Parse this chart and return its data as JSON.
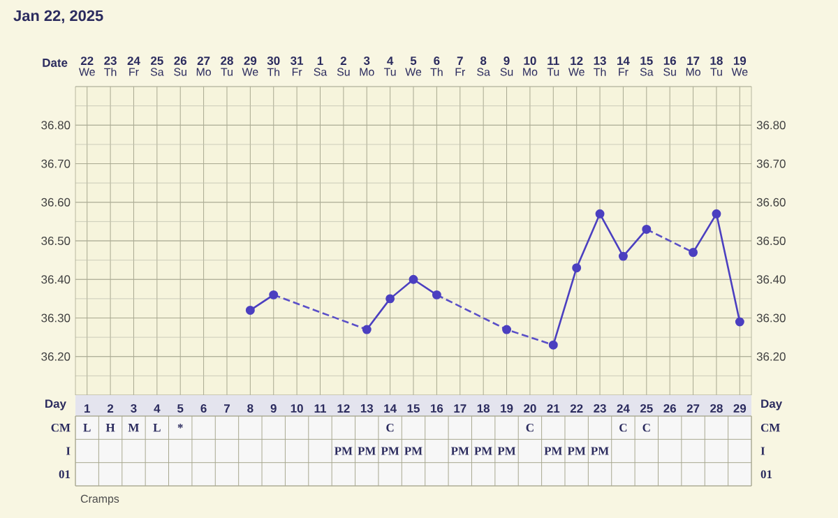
{
  "chart_data": [
    {
      "type": "line",
      "title": "Jan 22, 2025",
      "xlabel": "Date",
      "xlim": [
        "2025-01-21T12:00",
        "2025-02-19T12:00"
      ],
      "xticks": [
        {
          "value": "2025-01-22",
          "label": "22"
        },
        {
          "value": "2025-01-23",
          "label": "23"
        },
        {
          "value": "2025-01-24",
          "label": "24"
        },
        {
          "value": "2025-01-25",
          "label": "25"
        },
        {
          "value": "2025-01-26",
          "label": "26"
        },
        {
          "value": "2025-01-27",
          "label": "27"
        },
        {
          "value": "2025-01-28",
          "label": "28"
        },
        {
          "value": "2025-01-29",
          "label": "29"
        },
        {
          "value": "2025-01-30",
          "label": "30"
        },
        {
          "value": "2025-01-31",
          "label": "31"
        },
        {
          "value": "2025-02-01",
          "label": "1"
        },
        {
          "value": "2025-02-02",
          "label": "2"
        },
        {
          "value": "2025-02-03",
          "label": "3"
        },
        {
          "value": "2025-02-04",
          "label": "4"
        },
        {
          "value": "2025-02-05",
          "label": "5"
        },
        {
          "value": "2025-02-06",
          "label": "6"
        },
        {
          "value": "2025-02-07",
          "label": "7"
        },
        {
          "value": "2025-02-08",
          "label": "8"
        },
        {
          "value": "2025-02-09",
          "label": "9"
        },
        {
          "value": "2025-02-10",
          "label": "10"
        },
        {
          "value": "2025-02-11",
          "label": "11"
        },
        {
          "value": "2025-02-12",
          "label": "12"
        },
        {
          "value": "2025-02-13",
          "label": "13"
        },
        {
          "value": "2025-02-14",
          "label": "14"
        },
        {
          "value": "2025-02-15",
          "label": "15"
        },
        {
          "value": "2025-02-16",
          "label": "16"
        },
        {
          "value": "2025-02-17",
          "label": "17"
        },
        {
          "value": "2025-02-18",
          "label": "18"
        },
        {
          "value": "2025-02-19",
          "label": "19"
        }
      ],
      "annotations": [
        "We",
        "Th",
        "Fr",
        "Sa",
        "Su",
        "Mo",
        "Tu",
        "We",
        "Th",
        "Fr",
        "Sa",
        "Su",
        "Mo",
        "Tu",
        "We",
        "Th",
        "Fr",
        "Sa",
        "Su",
        "Mo",
        "Tu",
        "We",
        "Th",
        "Fr",
        "Sa",
        "Su",
        "Mo",
        "Tu",
        "We"
      ],
      "series": [
        {
          "color": "#4b3fc0",
          "line_style": "solid",
          "marker": "circle",
          "x": [
            "2025-01-29",
            "2025-01-30",
            "2025-01-31",
            "2025-02-03",
            "2025-02-04",
            "2025-02-05",
            "2025-02-06",
            "2025-02-07",
            "2025-02-09",
            "2025-02-10",
            "2025-02-11",
            "2025-02-12",
            "2025-02-13",
            "2025-02-14",
            "2025-02-15",
            "2025-02-16",
            "2025-02-17",
            "2025-02-18",
            "2025-02-19"
          ],
          "values": [
            36.32,
            36.36,
            null,
            36.27,
            36.35,
            36.4,
            36.36,
            null,
            36.27,
            null,
            36.23,
            36.43,
            36.57,
            36.46,
            36.53,
            null,
            36.47,
            36.57,
            36.29
          ]
        },
        {
          "color": "#5a4fc8",
          "line_style": "dashed",
          "marker": "none",
          "x": [
            "2025-01-30",
            "2025-02-03"
          ],
          "values": [
            36.36,
            36.27
          ]
        },
        {
          "color": "#5a4fc7",
          "line_style": "dashed",
          "marker": "none",
          "x": [
            "2025-02-06",
            "2025-02-09",
            "2025-02-11"
          ],
          "values": [
            36.36,
            36.27,
            36.23
          ]
        },
        {
          "color": "#5a4fc6",
          "line_style": "dashed",
          "marker": "none",
          "x": [
            "2025-02-15",
            "2025-02-17"
          ],
          "values": [
            36.53,
            36.47
          ]
        }
      ],
      "ylim": [
        36.1,
        36.9
      ],
      "yticks": [
        {
          "value": 36.2,
          "label": "36.20"
        },
        {
          "value": 36.3,
          "label": "36.30"
        },
        {
          "value": 36.4,
          "label": "36.40"
        },
        {
          "value": 36.5,
          "label": "36.50"
        },
        {
          "value": 36.6,
          "label": "36.60"
        },
        {
          "value": 36.7,
          "label": "36.70"
        },
        {
          "value": 36.8,
          "label": "36.80"
        }
      ],
      "y2lim": [
        36.1,
        36.9
      ],
      "y2ticks": [
        {
          "value": 36.2,
          "label": "36.20"
        },
        {
          "value": 36.3,
          "label": "36.30"
        },
        {
          "value": 36.4,
          "label": "36.40"
        },
        {
          "value": 36.5,
          "label": "36.50"
        },
        {
          "value": 36.6,
          "label": "36.60"
        },
        {
          "value": 36.7,
          "label": "36.70"
        },
        {
          "value": 36.8,
          "label": "36.80"
        }
      ],
      "grid": true
    },
    {
      "type": "heatmap",
      "xlabel": "Day",
      "categories": [
        "1",
        "2",
        "3",
        "4",
        "5",
        "6",
        "7",
        "8",
        "9",
        "10",
        "11",
        "12",
        "13",
        "14",
        "15",
        "16",
        "17",
        "18",
        "19",
        "20",
        "21",
        "22",
        "23",
        "24",
        "25",
        "26",
        "27",
        "28",
        "29"
      ],
      "y_categories": [
        "CM",
        "I",
        "01"
      ],
      "y2_categories": [
        "CM",
        "I",
        "01"
      ],
      "cells": [
        [
          null,
          null,
          null,
          null,
          null,
          null,
          null,
          null,
          null,
          null,
          null,
          null,
          null,
          null,
          null,
          null,
          null,
          null,
          null,
          null,
          null,
          null,
          null,
          null,
          null,
          null,
          null,
          null,
          null
        ],
        [
          null,
          null,
          null,
          null,
          null,
          null,
          null,
          null,
          null,
          null,
          null,
          null,
          null,
          null,
          null,
          null,
          null,
          null,
          null,
          null,
          null,
          null,
          null,
          null,
          null,
          null,
          null,
          null,
          null
        ],
        [
          null,
          null,
          null,
          null,
          null,
          null,
          null,
          null,
          null,
          null,
          null,
          null,
          null,
          null,
          null,
          null,
          null,
          null,
          null,
          null,
          null,
          null,
          null,
          null,
          null,
          null,
          null,
          null,
          null
        ]
      ],
      "cell_labels": [
        [
          "L",
          "H",
          "M",
          "L",
          "*",
          null,
          null,
          null,
          null,
          null,
          null,
          null,
          null,
          "C",
          null,
          null,
          null,
          null,
          null,
          "C",
          null,
          null,
          null,
          "C",
          "C",
          null,
          null,
          null,
          null
        ],
        [
          null,
          null,
          null,
          null,
          null,
          null,
          null,
          null,
          null,
          null,
          null,
          "PM",
          "PM",
          "PM",
          "PM",
          null,
          "PM",
          "PM",
          "PM",
          null,
          "PM",
          "PM",
          "PM",
          null,
          null,
          null,
          null,
          null,
          null
        ],
        [
          null,
          null,
          null,
          null,
          null,
          null,
          null,
          null,
          null,
          null,
          null,
          null,
          null,
          null,
          null,
          null,
          null,
          null,
          null,
          null,
          null,
          null,
          null,
          null,
          null,
          null,
          null,
          null,
          null
        ]
      ],
      "annotations": [
        "Cramps"
      ]
    }
  ]
}
